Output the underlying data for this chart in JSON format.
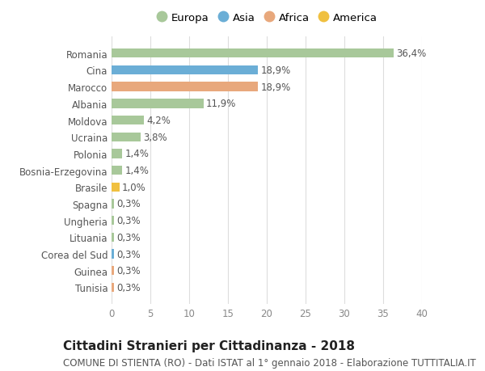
{
  "categories": [
    "Tunisia",
    "Guinea",
    "Corea del Sud",
    "Lituania",
    "Ungheria",
    "Spagna",
    "Brasile",
    "Bosnia-Erzegovina",
    "Polonia",
    "Ucraina",
    "Moldova",
    "Albania",
    "Marocco",
    "Cina",
    "Romania"
  ],
  "values": [
    0.3,
    0.3,
    0.3,
    0.3,
    0.3,
    0.3,
    1.0,
    1.4,
    1.4,
    3.8,
    4.2,
    11.9,
    18.9,
    18.9,
    36.4
  ],
  "labels": [
    "0,3%",
    "0,3%",
    "0,3%",
    "0,3%",
    "0,3%",
    "0,3%",
    "1,0%",
    "1,4%",
    "1,4%",
    "3,8%",
    "4,2%",
    "11,9%",
    "18,9%",
    "18,9%",
    "36,4%"
  ],
  "colors": [
    "#e8a87c",
    "#e8a87c",
    "#6baed6",
    "#a8c89a",
    "#a8c89a",
    "#a8c89a",
    "#f0c040",
    "#a8c89a",
    "#a8c89a",
    "#a8c89a",
    "#a8c89a",
    "#a8c89a",
    "#e8a87c",
    "#6baed6",
    "#a8c89a"
  ],
  "legend_labels": [
    "Europa",
    "Asia",
    "Africa",
    "America"
  ],
  "legend_colors": [
    "#a8c89a",
    "#6baed6",
    "#e8a87c",
    "#f0c040"
  ],
  "title": "Cittadini Stranieri per Cittadinanza - 2018",
  "subtitle": "COMUNE DI STIENTA (RO) - Dati ISTAT al 1° gennaio 2018 - Elaborazione TUTTITALIA.IT",
  "xlim": [
    0,
    40
  ],
  "xticks": [
    0,
    5,
    10,
    15,
    20,
    25,
    30,
    35,
    40
  ],
  "background_color": "#ffffff",
  "grid_color": "#dddddd",
  "bar_height": 0.55,
  "value_label_fontsize": 8.5,
  "tick_fontsize": 8.5,
  "legend_fontsize": 9.5,
  "title_fontsize": 11,
  "subtitle_fontsize": 8.5,
  "text_color": "#555555",
  "label_color": "#555555"
}
